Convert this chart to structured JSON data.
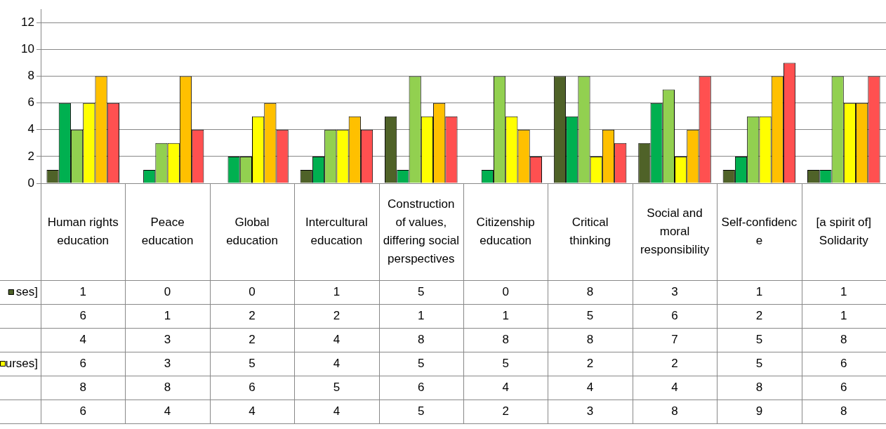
{
  "chart_data": {
    "type": "bar",
    "categories": [
      "Human rights education",
      "Peace education",
      "Global education",
      "Intercultural education",
      "Construction of values, differing social perspectives",
      "Citizenship education",
      "Critical thinking",
      "Social and moral responsibility",
      "Self-confidence",
      "[a spirit of] Solidarity"
    ],
    "series": [
      {
        "name": "ses]",
        "color": "#4f6228",
        "values": [
          1,
          0,
          0,
          1,
          5,
          0,
          8,
          3,
          1,
          1
        ]
      },
      {
        "color": "#00b050",
        "values": [
          6,
          1,
          2,
          2,
          1,
          1,
          5,
          6,
          2,
          1
        ]
      },
      {
        "color": "#92d050",
        "values": [
          4,
          3,
          2,
          4,
          8,
          8,
          8,
          7,
          5,
          8
        ]
      },
      {
        "name": "urses]",
        "color": "#ffff00",
        "values": [
          6,
          3,
          5,
          4,
          5,
          5,
          2,
          2,
          5,
          6
        ]
      },
      {
        "color": "#ffc000",
        "values": [
          8,
          8,
          6,
          5,
          6,
          4,
          4,
          4,
          8,
          6
        ]
      },
      {
        "color": "#ff5050",
        "values": [
          6,
          4,
          4,
          4,
          5,
          2,
          3,
          8,
          9,
          8
        ]
      }
    ],
    "ylim": [
      0,
      13
    ],
    "yticks": [
      0,
      2,
      4,
      6,
      8,
      10,
      12
    ],
    "grid": "y",
    "data_labels": true,
    "legend": "bottom left"
  }
}
